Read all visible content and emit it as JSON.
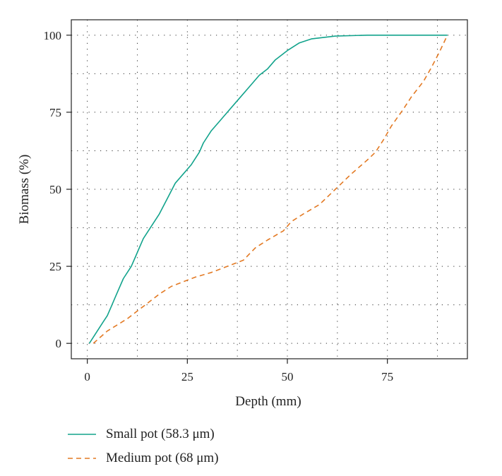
{
  "chart_data": {
    "type": "line",
    "title": "",
    "xlabel": "Depth (mm)",
    "ylabel": "Biomass (%)",
    "xlim": [
      -4,
      95
    ],
    "ylim": [
      -5,
      105
    ],
    "xticks": [
      0,
      25,
      50,
      75
    ],
    "yticks": [
      0,
      25,
      50,
      75,
      100
    ],
    "xtick_labels": [
      "0",
      "25",
      "50",
      "75"
    ],
    "ytick_labels": [
      "0",
      "25",
      "50",
      "75",
      "100"
    ],
    "grid": true,
    "grid_x": [
      0,
      12.5,
      25,
      37.5,
      50,
      62.5,
      75,
      87.5
    ],
    "legend_position": "bottom-left",
    "series": [
      {
        "name": "Small pot (58.3 μm)",
        "color": "#12a38c",
        "dash": "solid",
        "points": [
          [
            0.5,
            0
          ],
          [
            2,
            3
          ],
          [
            4,
            7
          ],
          [
            5,
            9
          ],
          [
            6,
            12
          ],
          [
            7,
            15
          ],
          [
            8,
            18
          ],
          [
            9,
            21
          ],
          [
            11,
            25
          ],
          [
            12,
            28
          ],
          [
            13,
            31
          ],
          [
            14,
            34
          ],
          [
            16,
            38
          ],
          [
            18,
            42
          ],
          [
            20,
            47
          ],
          [
            22,
            52
          ],
          [
            24,
            55
          ],
          [
            26,
            58
          ],
          [
            28,
            62
          ],
          [
            29,
            65
          ],
          [
            31,
            69
          ],
          [
            33,
            72
          ],
          [
            35,
            75
          ],
          [
            37,
            78
          ],
          [
            39,
            81
          ],
          [
            41,
            84
          ],
          [
            43,
            87
          ],
          [
            45,
            89
          ],
          [
            47,
            92
          ],
          [
            50,
            95
          ],
          [
            53,
            97.5
          ],
          [
            56,
            98.8
          ],
          [
            62,
            99.7
          ],
          [
            70,
            100
          ],
          [
            80,
            100
          ],
          [
            90,
            100
          ]
        ]
      },
      {
        "name": "Medium pot (68 μm)",
        "color": "#e37a24",
        "dash": "dashed",
        "points": [
          [
            1.5,
            0
          ],
          [
            5,
            4
          ],
          [
            10,
            8
          ],
          [
            13,
            11
          ],
          [
            15,
            13
          ],
          [
            18,
            16
          ],
          [
            21,
            18.5
          ],
          [
            24,
            20
          ],
          [
            27,
            21.5
          ],
          [
            31,
            23
          ],
          [
            35,
            25
          ],
          [
            39,
            27
          ],
          [
            42,
            31
          ],
          [
            45,
            33.5
          ],
          [
            49,
            36.5
          ],
          [
            51,
            39.5
          ],
          [
            54,
            42
          ],
          [
            58,
            45
          ],
          [
            62,
            50
          ],
          [
            66,
            55
          ],
          [
            70,
            59.5
          ],
          [
            72,
            62
          ],
          [
            74,
            66
          ],
          [
            76,
            70.5
          ],
          [
            79,
            76
          ],
          [
            81,
            80
          ],
          [
            84,
            85
          ],
          [
            86,
            89.5
          ],
          [
            88,
            94.5
          ],
          [
            90,
            100
          ]
        ]
      }
    ]
  }
}
